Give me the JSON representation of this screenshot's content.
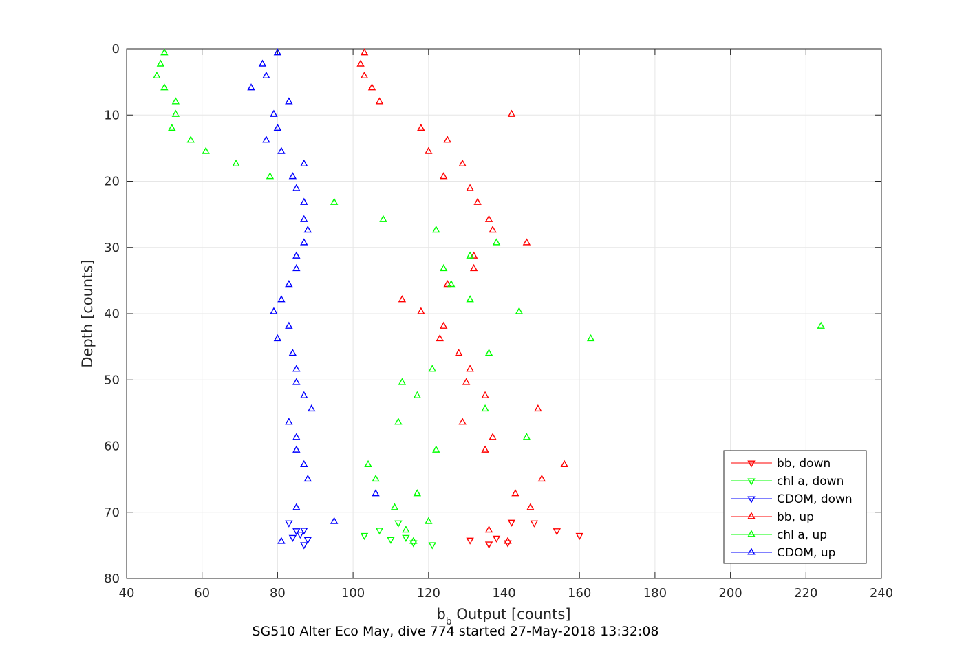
{
  "chart_data": {
    "type": "scatter",
    "title": "SG510 Alter Eco May, dive 774 started 27-May-2018 13:32:08",
    "xlabel": {
      "main": "b",
      "sub": "b",
      "rest": " Output [counts]"
    },
    "ylabel": "Depth [counts]",
    "xlim": [
      40,
      240
    ],
    "ylim": [
      0,
      80
    ],
    "y_reversed": true,
    "grid": true,
    "legend_position": "bottom-right",
    "x_ticks": [
      40,
      60,
      80,
      100,
      120,
      140,
      160,
      180,
      200,
      220,
      240
    ],
    "y_ticks": [
      0,
      10,
      20,
      30,
      40,
      50,
      60,
      70,
      80
    ],
    "series": [
      {
        "name": "bb, down",
        "color": "#ff0000",
        "marker": "triangle-down",
        "x": [
          131,
          136,
          142,
          148,
          154,
          160,
          138,
          141
        ],
        "y": [
          74.2,
          74.8,
          71.5,
          71.6,
          72.8,
          73.5,
          73.9,
          74.6
        ]
      },
      {
        "name": "chl a, down",
        "color": "#00ff00",
        "marker": "triangle-down",
        "x": [
          103,
          107,
          110,
          114,
          112,
          116,
          121
        ],
        "y": [
          73.5,
          72.7,
          74.1,
          73.8,
          71.6,
          74.6,
          74.9
        ]
      },
      {
        "name": "CDOM, down",
        "color": "#0000ff",
        "marker": "triangle-down",
        "x": [
          83,
          84,
          85,
          86,
          87,
          88,
          87
        ],
        "y": [
          71.6,
          73.8,
          72.8,
          73.3,
          72.7,
          74.1,
          74.9
        ]
      },
      {
        "name": "bb, up",
        "color": "#ff0000",
        "marker": "triangle-up",
        "x": [
          103,
          102,
          103,
          105,
          107,
          142,
          118,
          125,
          120,
          129,
          124,
          131,
          133,
          136,
          137,
          146,
          132,
          132,
          125,
          113,
          118,
          124,
          123,
          128,
          131,
          130,
          135,
          149,
          129,
          137,
          135,
          156,
          150,
          143,
          147,
          136,
          141
        ],
        "y": [
          0.6,
          2.3,
          4.1,
          5.9,
          8.0,
          9.9,
          12.0,
          13.8,
          15.5,
          17.4,
          19.3,
          21.1,
          23.2,
          25.8,
          27.4,
          29.3,
          31.3,
          33.2,
          35.6,
          37.9,
          39.7,
          41.9,
          43.8,
          46.0,
          48.4,
          50.4,
          52.4,
          54.4,
          56.4,
          58.7,
          60.6,
          62.8,
          65.0,
          67.2,
          69.3,
          72.7,
          74.4
        ]
      },
      {
        "name": "chl a, up",
        "color": "#00ff00",
        "marker": "triangle-up",
        "x": [
          50,
          49,
          48,
          50,
          53,
          53,
          52,
          57,
          61,
          69,
          78,
          95,
          108,
          122,
          138,
          131,
          124,
          126,
          131,
          144,
          224,
          163,
          136,
          121,
          113,
          117,
          135,
          112,
          146,
          122,
          104,
          106,
          117,
          111,
          120,
          114,
          116
        ],
        "y": [
          0.6,
          2.3,
          4.1,
          5.9,
          8.0,
          9.9,
          12.0,
          13.8,
          15.5,
          17.4,
          19.3,
          23.2,
          25.8,
          27.4,
          29.3,
          31.3,
          33.2,
          35.6,
          37.9,
          39.7,
          41.9,
          43.8,
          46.0,
          48.4,
          50.4,
          52.4,
          54.4,
          56.4,
          58.7,
          60.6,
          62.8,
          65.0,
          67.2,
          69.3,
          71.4,
          72.7,
          74.4
        ]
      },
      {
        "name": "CDOM, up",
        "color": "#0000ff",
        "marker": "triangle-up",
        "x": [
          80,
          76,
          77,
          73,
          83,
          79,
          80,
          77,
          81,
          87,
          84,
          85,
          87,
          87,
          88,
          87,
          85,
          85,
          83,
          81,
          79,
          83,
          80,
          84,
          85,
          85,
          87,
          89,
          83,
          85,
          85,
          87,
          88,
          106,
          85,
          95,
          81
        ],
        "y": [
          0.6,
          2.3,
          4.1,
          5.9,
          8.0,
          9.9,
          12.0,
          13.8,
          15.5,
          17.4,
          19.3,
          21.1,
          23.2,
          25.8,
          27.4,
          29.3,
          31.3,
          33.2,
          35.6,
          37.9,
          39.7,
          41.9,
          43.8,
          46.0,
          48.4,
          50.4,
          52.4,
          54.4,
          56.4,
          58.7,
          60.6,
          62.8,
          65.0,
          67.2,
          69.3,
          71.4,
          74.4
        ]
      }
    ]
  }
}
